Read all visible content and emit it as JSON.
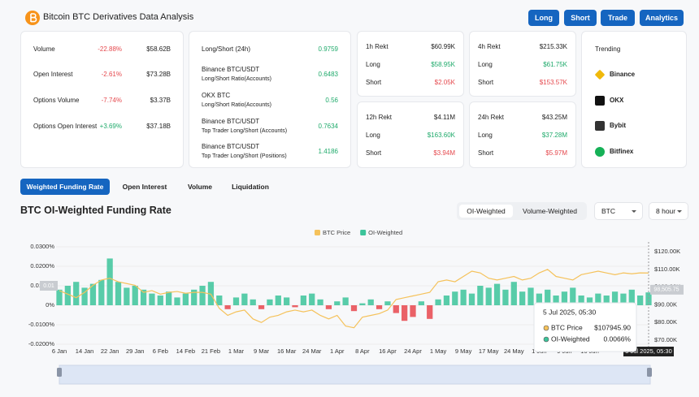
{
  "header": {
    "title": "Bitcoin BTC Derivatives Data Analysis",
    "buttons": [
      "Long",
      "Short",
      "Trade",
      "Analytics"
    ]
  },
  "overview": {
    "rows": [
      {
        "label": "Volume",
        "change": "-22.88%",
        "value": "$58.62B"
      },
      {
        "label": "Open Interest",
        "change": "-2.61%",
        "value": "$73.28B"
      },
      {
        "label": "Options Volume",
        "change": "-7.74%",
        "value": "$3.37B"
      },
      {
        "label": "Options Open Interest",
        "change": "+3.69%",
        "value": "$37.18B"
      }
    ]
  },
  "ratios": {
    "rows": [
      {
        "label": "Long/Short (24h)",
        "value": "0.9759"
      },
      {
        "label": "Binance BTC/USDT",
        "sublabel": "Long/Short Ratio(Accounts)",
        "value": "0.6483"
      },
      {
        "label": "OKX BTC",
        "sublabel": "Long/Short Ratio(Accounts)",
        "value": "0.56"
      },
      {
        "label": "Binance BTC/USDT",
        "sublabel": "Top Trader Long/Short (Accounts)",
        "value": "0.7634"
      },
      {
        "label": "Binance BTC/USDT",
        "sublabel": "Top Trader Long/Short (Positions)",
        "value": "1.4186"
      }
    ]
  },
  "rekt": [
    {
      "title": "1h Rekt",
      "total": "$60.99K",
      "long_label": "Long",
      "long": "$58.95K",
      "short_label": "Short",
      "short": "$2.05K"
    },
    {
      "title": "4h Rekt",
      "total": "$215.33K",
      "long_label": "Long",
      "long": "$61.75K",
      "short_label": "Short",
      "short": "$153.57K"
    },
    {
      "title": "12h Rekt",
      "total": "$4.11M",
      "long_label": "Long",
      "long": "$163.60K",
      "short_label": "Short",
      "short": "$3.94M"
    },
    {
      "title": "24h Rekt",
      "total": "$43.25M",
      "long_label": "Long",
      "long": "$37.28M",
      "short_label": "Short",
      "short": "$5.97M"
    }
  ],
  "trending": {
    "title": "Trending",
    "items": [
      "Binance",
      "OKX",
      "Bybit",
      "Bitfinex"
    ]
  },
  "tabs": {
    "items": [
      "Weighted Funding Rate",
      "Open Interest",
      "Volume",
      "Liquidation"
    ],
    "active": 0
  },
  "controls": {
    "weighting": [
      "OI-Weighted",
      "Volume-Weighted"
    ],
    "active": 0,
    "symbol": "BTC",
    "interval": "8 hour"
  },
  "chart_data": {
    "type": "bar",
    "title": "BTC OI-Weighted Funding Rate",
    "categories": [
      "6 Jan",
      null,
      null,
      "14 Jan",
      null,
      null,
      "22 Jan",
      null,
      null,
      "29 Jan",
      null,
      null,
      "6 Feb",
      null,
      null,
      "14 Feb",
      null,
      null,
      "21 Feb",
      null,
      null,
      "1 Mar",
      null,
      null,
      "9 Mar",
      null,
      null,
      "16 Mar",
      null,
      null,
      "24 Mar",
      null,
      null,
      "1 Apr",
      null,
      null,
      "8 Apr",
      null,
      null,
      "16 Apr",
      null,
      null,
      "24 Apr",
      null,
      null,
      "1 May",
      null,
      null,
      "9 May",
      null,
      null,
      "17 May",
      null,
      null,
      "24 May",
      null,
      null,
      "1 Jun",
      null,
      null,
      "9 Jun",
      null,
      null,
      "16 Jun",
      null,
      null,
      null,
      null,
      null,
      null,
      null
    ],
    "series": [
      {
        "name": "BTC Price",
        "type": "line",
        "axis": "y2",
        "color": "#f5c25b",
        "values": [
          98000,
          96000,
          94000,
          97000,
          101000,
          104000,
          105000,
          103000,
          102000,
          101000,
          97000,
          98000,
          96000,
          97000,
          97500,
          96500,
          97000,
          97000,
          96000,
          88000,
          84000,
          86000,
          87000,
          82000,
          80000,
          83000,
          84000,
          86000,
          87000,
          86000,
          87000,
          84000,
          82000,
          84000,
          78000,
          77000,
          83000,
          84000,
          85000,
          87000,
          93000,
          94000,
          95000,
          96000,
          97000,
          103000,
          104000,
          103000,
          106000,
          109000,
          108000,
          105000,
          104000,
          105000,
          106000,
          104000,
          105000,
          108000,
          110000,
          106000,
          105000,
          104000,
          107000,
          108000,
          109000,
          108000,
          107000,
          108000,
          107500,
          108000,
          107945.9
        ]
      },
      {
        "name": "OI-Weighted",
        "type": "bar",
        "axis": "y",
        "color": "#3cc49a",
        "negative_color": "#e8474c",
        "values": [
          0.008,
          0.01,
          0.012,
          0.009,
          0.011,
          0.013,
          0.024,
          0.012,
          0.009,
          0.01,
          0.008,
          0.006,
          0.005,
          0.007,
          0.004,
          0.006,
          0.008,
          0.01,
          0.012,
          0.005,
          -0.002,
          0.004,
          0.006,
          0.003,
          -0.002,
          0.003,
          0.005,
          0.004,
          -0.001,
          0.005,
          0.006,
          0.003,
          -0.002,
          0.002,
          0.004,
          -0.003,
          0.001,
          0.003,
          -0.002,
          0.002,
          -0.004,
          -0.008,
          -0.006,
          0.002,
          -0.007,
          0.003,
          0.005,
          0.007,
          0.008,
          0.006,
          0.01,
          0.009,
          0.011,
          0.008,
          0.012,
          0.007,
          0.009,
          0.006,
          0.008,
          0.005,
          0.007,
          0.009,
          0.005,
          0.004,
          0.006,
          0.005,
          0.007,
          0.006,
          0.008,
          0.005,
          0.0066
        ]
      }
    ],
    "ylim": [
      -0.02,
      0.03
    ],
    "yticks": [
      {
        "value": 0.03,
        "label": "0.0300%"
      },
      {
        "value": 0.02,
        "label": "0.0200%"
      },
      {
        "value": 0.01,
        "label": "0.0100%"
      },
      {
        "value": 0,
        "label": "0%"
      },
      {
        "value": -0.01,
        "label": "-0.0100%"
      },
      {
        "value": -0.02,
        "label": "-0.0200%"
      }
    ],
    "y2lim": [
      70000,
      120000
    ],
    "y2ticks": [
      {
        "value": 120000,
        "label": "$120.00K"
      },
      {
        "value": 110000,
        "label": "$110.00K"
      },
      {
        "value": 100000,
        "label": "$100.00K"
      },
      {
        "value": 90000,
        "label": "$90.00K"
      },
      {
        "value": 80000,
        "label": "$80.00K"
      },
      {
        "value": 70000,
        "label": "$70.00K"
      }
    ],
    "grid": true,
    "legend": "top",
    "y_marker": {
      "value": 0.01,
      "label": "0.01"
    },
    "y2_marker": {
      "value": 98505.75,
      "label": "98,505.75"
    },
    "x_marker_label": "5 Jul 2025, 05:30",
    "tooltip": {
      "title": "5 Jul 2025, 05:30",
      "rows": [
        {
          "name": "BTC Price",
          "value": "$107945.90"
        },
        {
          "name": "OI-Weighted",
          "value": "0.0066%"
        }
      ]
    }
  }
}
